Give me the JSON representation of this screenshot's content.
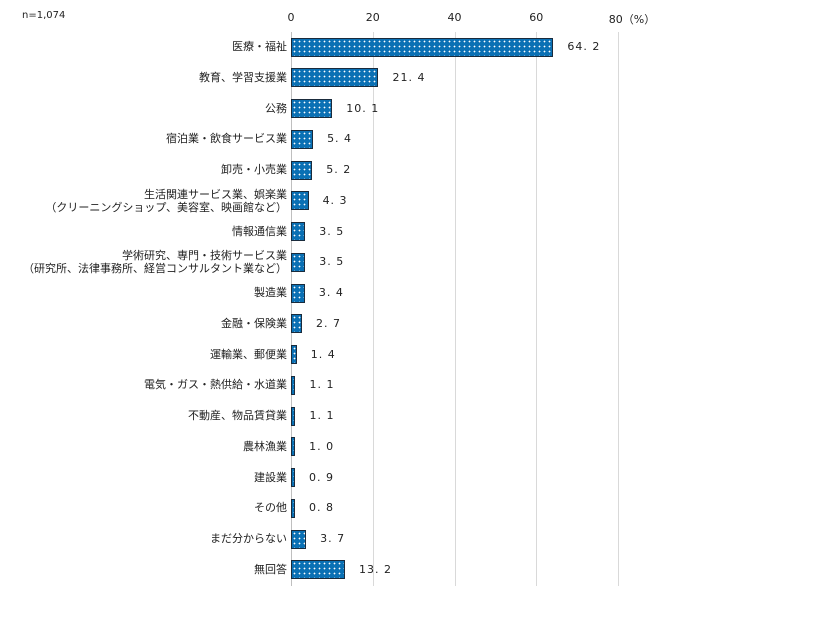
{
  "chart_data": {
    "type": "bar",
    "orientation": "horizontal",
    "title": "",
    "sample_note": "n=1,074",
    "xlabel": "",
    "ylabel": "",
    "x_unit": "(%)",
    "xlim": [
      0,
      80
    ],
    "x_ticks": [
      "0",
      "20",
      "40",
      "60",
      "80"
    ],
    "grid": true,
    "legend": null,
    "bar_color": "#0a70b4",
    "bar_pattern": "white dots",
    "categories": [
      "医療・福祉",
      "教育、学習支援業",
      "公務",
      "宿泊業・飲食サービス業",
      "卸売・小売業",
      "生活関連サービス業、娯楽業\n（クリーニングショップ、美容室、映画館など）",
      "情報通信業",
      "学術研究、専門・技術サービス業\n（研究所、法律事務所、経営コンサルタント業など）",
      "製造業",
      "金融・保険業",
      "運輸業、郵便業",
      "電気・ガス・熱供給・水道業",
      "不動産、物品賃貸業",
      "農林漁業",
      "建設業",
      "その他",
      "まだ分からない",
      "無回答"
    ],
    "values": [
      64.2,
      21.4,
      10.1,
      5.4,
      5.2,
      4.3,
      3.5,
      3.5,
      3.4,
      2.7,
      1.4,
      1.1,
      1.1,
      1.0,
      0.9,
      0.8,
      3.7,
      13.2
    ],
    "value_labels": [
      "64.2",
      "21.4",
      "10.1",
      "5.4",
      "5.2",
      "4.3",
      "3.5",
      "3.5",
      "3.4",
      "2.7",
      "1.4",
      "1.1",
      "1.1",
      "1.0",
      "0.9",
      "0.8",
      "3.7",
      "13.2"
    ]
  },
  "rows": [
    {
      "line1": "医療・福祉",
      "line2": "",
      "value": "64. 2"
    },
    {
      "line1": "教育、学習支援業",
      "line2": "",
      "value": "21. 4"
    },
    {
      "line1": "公務",
      "line2": "",
      "value": "10. 1"
    },
    {
      "line1": "宿泊業・飲食サービス業",
      "line2": "",
      "value": "5. 4"
    },
    {
      "line1": "卸売・小売業",
      "line2": "",
      "value": "5. 2"
    },
    {
      "line1": "生活関連サービス業、娯楽業",
      "line2": "（クリーニングショップ、美容室、映画館など）",
      "value": "4. 3"
    },
    {
      "line1": "情報通信業",
      "line2": "",
      "value": "3. 5"
    },
    {
      "line1": "学術研究、専門・技術サービス業",
      "line2": "（研究所、法律事務所、経営コンサルタント業など）",
      "value": "3. 5"
    },
    {
      "line1": "製造業",
      "line2": "",
      "value": "3. 4"
    },
    {
      "line1": "金融・保険業",
      "line2": "",
      "value": "2. 7"
    },
    {
      "line1": "運輸業、郵便業",
      "line2": "",
      "value": "1. 4"
    },
    {
      "line1": "電気・ガス・熱供給・水道業",
      "line2": "",
      "value": "1. 1"
    },
    {
      "line1": "不動産、物品賃貸業",
      "line2": "",
      "value": "1. 1"
    },
    {
      "line1": "農林漁業",
      "line2": "",
      "value": "1. 0"
    },
    {
      "line1": "建設業",
      "line2": "",
      "value": "0. 9"
    },
    {
      "line1": "その他",
      "line2": "",
      "value": "0. 8"
    },
    {
      "line1": "まだ分からない",
      "line2": "",
      "value": "3. 7"
    },
    {
      "line1": "無回答",
      "line2": "",
      "value": "13. 2"
    }
  ],
  "axis": {
    "ticks": [
      {
        "label": "0",
        "value": 0
      },
      {
        "label": "20",
        "value": 20
      },
      {
        "label": "40",
        "value": 40
      },
      {
        "label": "60",
        "value": 60
      },
      {
        "label": "80（%）",
        "value": 80
      }
    ]
  },
  "header": {
    "n_label": "n=1,074"
  }
}
